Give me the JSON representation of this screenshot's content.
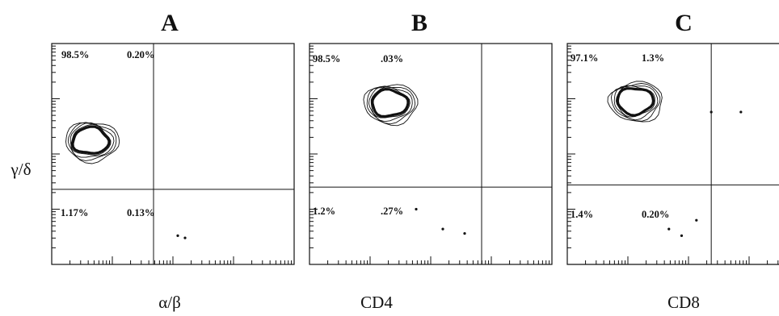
{
  "chart_data": [
    {
      "type": "scatter",
      "title": "A",
      "xlabel": "α/β",
      "ylabel": "γ/δ",
      "quadrants": {
        "upper_left": "98.5%",
        "upper_right": "0.20%",
        "lower_left": "1.17%",
        "lower_right": "0.13%"
      },
      "contour_centers": [
        [
          0.16,
          0.56
        ]
      ],
      "events": [
        [
          0.52,
          0.13
        ],
        [
          0.55,
          0.12
        ]
      ],
      "x_gate": 0.42,
      "y_gate": 0.34
    },
    {
      "type": "scatter",
      "title": "B",
      "xlabel": "CD4",
      "ylabel": "",
      "quadrants": {
        "upper_left": "98.5%",
        "upper_right": ".03%",
        "lower_left": "1.2%",
        "lower_right": ".27%"
      },
      "contour_centers": [
        [
          0.33,
          0.73
        ]
      ],
      "events": [
        [
          0.44,
          0.25
        ],
        [
          0.55,
          0.16
        ],
        [
          0.64,
          0.14
        ]
      ],
      "x_gate": 0.71,
      "y_gate": 0.35
    },
    {
      "type": "scatter",
      "title": "C",
      "xlabel": "CD8",
      "ylabel": "",
      "quadrants": {
        "upper_left": "97.1%",
        "upper_right": "1.3%",
        "lower_left": "1.4%",
        "lower_right": "0.20%"
      },
      "contour_centers": [
        [
          0.32,
          0.74
        ]
      ],
      "events": [
        [
          0.68,
          0.69
        ],
        [
          0.82,
          0.69
        ],
        [
          0.48,
          0.16
        ],
        [
          0.54,
          0.13
        ],
        [
          0.61,
          0.2
        ]
      ],
      "x_gate": 0.68,
      "y_gate": 0.36
    }
  ]
}
